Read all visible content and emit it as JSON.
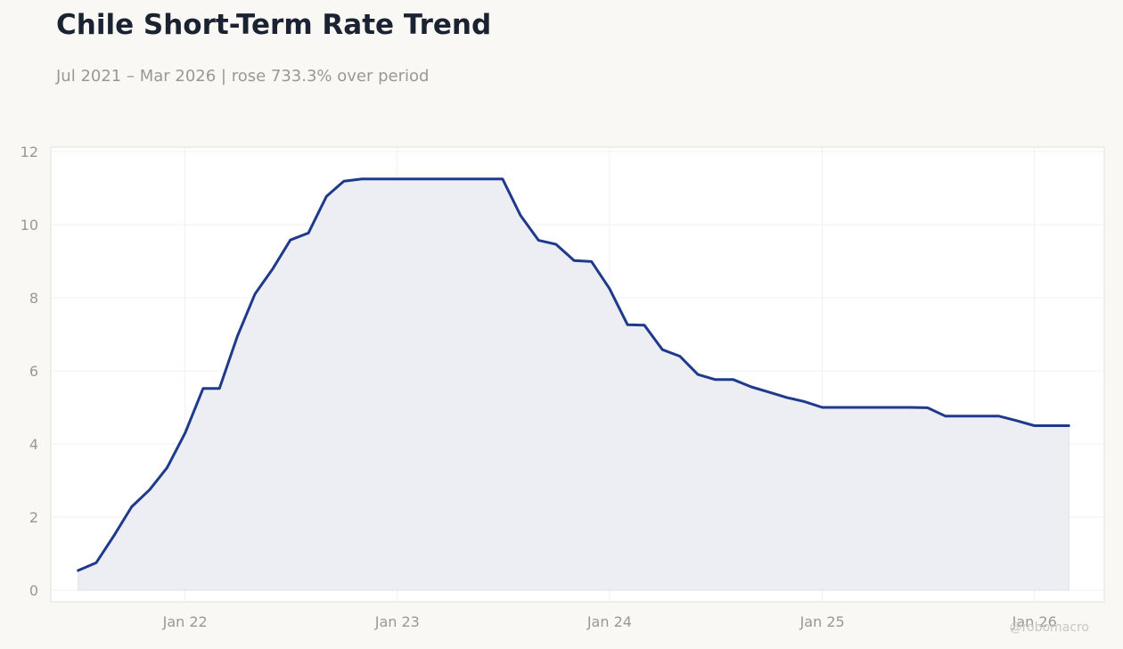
{
  "title": "Chile Short-Term Rate Trend",
  "subtitle": "Jul 2021 – Mar 2026 | rose 733.3% over period",
  "watermark": "@robomacro",
  "colors": {
    "line": "#1f3a8a",
    "fill": "#eceef4",
    "background": "#f9f8f5",
    "plot_background": "#ffffff",
    "grid": "#ececec",
    "tick_text": "#9a9893",
    "title": "#1b2333"
  },
  "chart_data": {
    "type": "area",
    "title": "Chile Short-Term Rate Trend",
    "xlabel": "",
    "ylabel": "",
    "ylim": [
      0,
      12
    ],
    "xlim": [
      "2021-05-15",
      "2026-05-01"
    ],
    "yticks": [
      0,
      2,
      4,
      6,
      8,
      10,
      12
    ],
    "xticks": [
      {
        "date": "2022-01-01",
        "label": "Jan 22"
      },
      {
        "date": "2023-01-01",
        "label": "Jan 23"
      },
      {
        "date": "2024-01-01",
        "label": "Jan 24"
      },
      {
        "date": "2025-01-01",
        "label": "Jan 25"
      },
      {
        "date": "2026-01-01",
        "label": "Jan 26"
      }
    ],
    "grid": true,
    "series": [
      {
        "x": [
          "2021-07-01",
          "2021-08-01",
          "2021-09-01",
          "2021-10-01",
          "2021-11-01",
          "2021-12-01",
          "2022-01-01",
          "2022-02-01",
          "2022-03-01",
          "2022-04-01",
          "2022-05-01",
          "2022-06-01",
          "2022-07-01",
          "2022-08-01",
          "2022-09-01",
          "2022-10-01",
          "2022-11-01",
          "2022-12-01",
          "2023-01-01",
          "2023-02-01",
          "2023-03-01",
          "2023-04-01",
          "2023-05-01",
          "2023-06-01",
          "2023-07-01",
          "2023-08-01",
          "2023-09-01",
          "2023-10-01",
          "2023-11-01",
          "2023-12-01",
          "2024-01-01",
          "2024-02-01",
          "2024-03-01",
          "2024-04-01",
          "2024-05-01",
          "2024-06-01",
          "2024-07-01",
          "2024-08-01",
          "2024-09-01",
          "2024-10-01",
          "2024-11-01",
          "2024-12-01",
          "2025-01-01",
          "2025-02-01",
          "2025-03-01",
          "2025-04-01",
          "2025-05-01",
          "2025-06-01",
          "2025-07-01",
          "2025-08-01",
          "2025-09-01",
          "2025-10-01",
          "2025-11-01",
          "2025-12-01",
          "2026-01-01",
          "2026-02-01",
          "2026-03-01"
        ],
        "values": [
          0.54,
          0.75,
          1.5,
          2.28,
          2.75,
          3.35,
          4.3,
          5.52,
          5.52,
          6.95,
          8.1,
          8.8,
          9.58,
          9.77,
          10.77,
          11.19,
          11.25,
          11.25,
          11.25,
          11.25,
          11.25,
          11.25,
          11.25,
          11.25,
          11.25,
          10.25,
          9.57,
          9.46,
          9.02,
          8.99,
          8.25,
          7.26,
          7.25,
          6.58,
          6.4,
          5.9,
          5.76,
          5.76,
          5.56,
          5.42,
          5.27,
          5.16,
          5.0,
          5.0,
          5.0,
          5.0,
          5.0,
          5.0,
          4.99,
          4.76,
          4.76,
          4.76,
          4.76,
          4.64,
          4.5,
          4.5,
          4.5
        ]
      }
    ]
  }
}
